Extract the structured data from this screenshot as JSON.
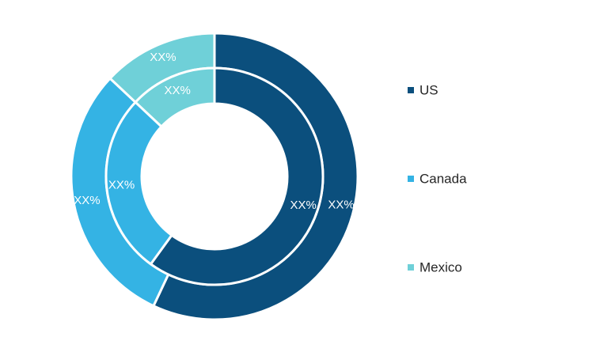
{
  "chart_data": {
    "type": "pie",
    "variant": "double-donut",
    "legend_position": "right",
    "categories": [
      "US",
      "Canada",
      "Mexico"
    ],
    "colors": [
      "#0b4f7d",
      "#34b3e4",
      "#6fd0d8"
    ],
    "series": [
      {
        "ring": "outer",
        "values": [
          57,
          30,
          13
        ],
        "labels": [
          "XX%",
          "XX%",
          "XX%"
        ]
      },
      {
        "ring": "inner",
        "values": [
          60,
          27,
          13
        ],
        "labels": [
          "XX%",
          "XX%",
          "XX%"
        ]
      }
    ]
  }
}
